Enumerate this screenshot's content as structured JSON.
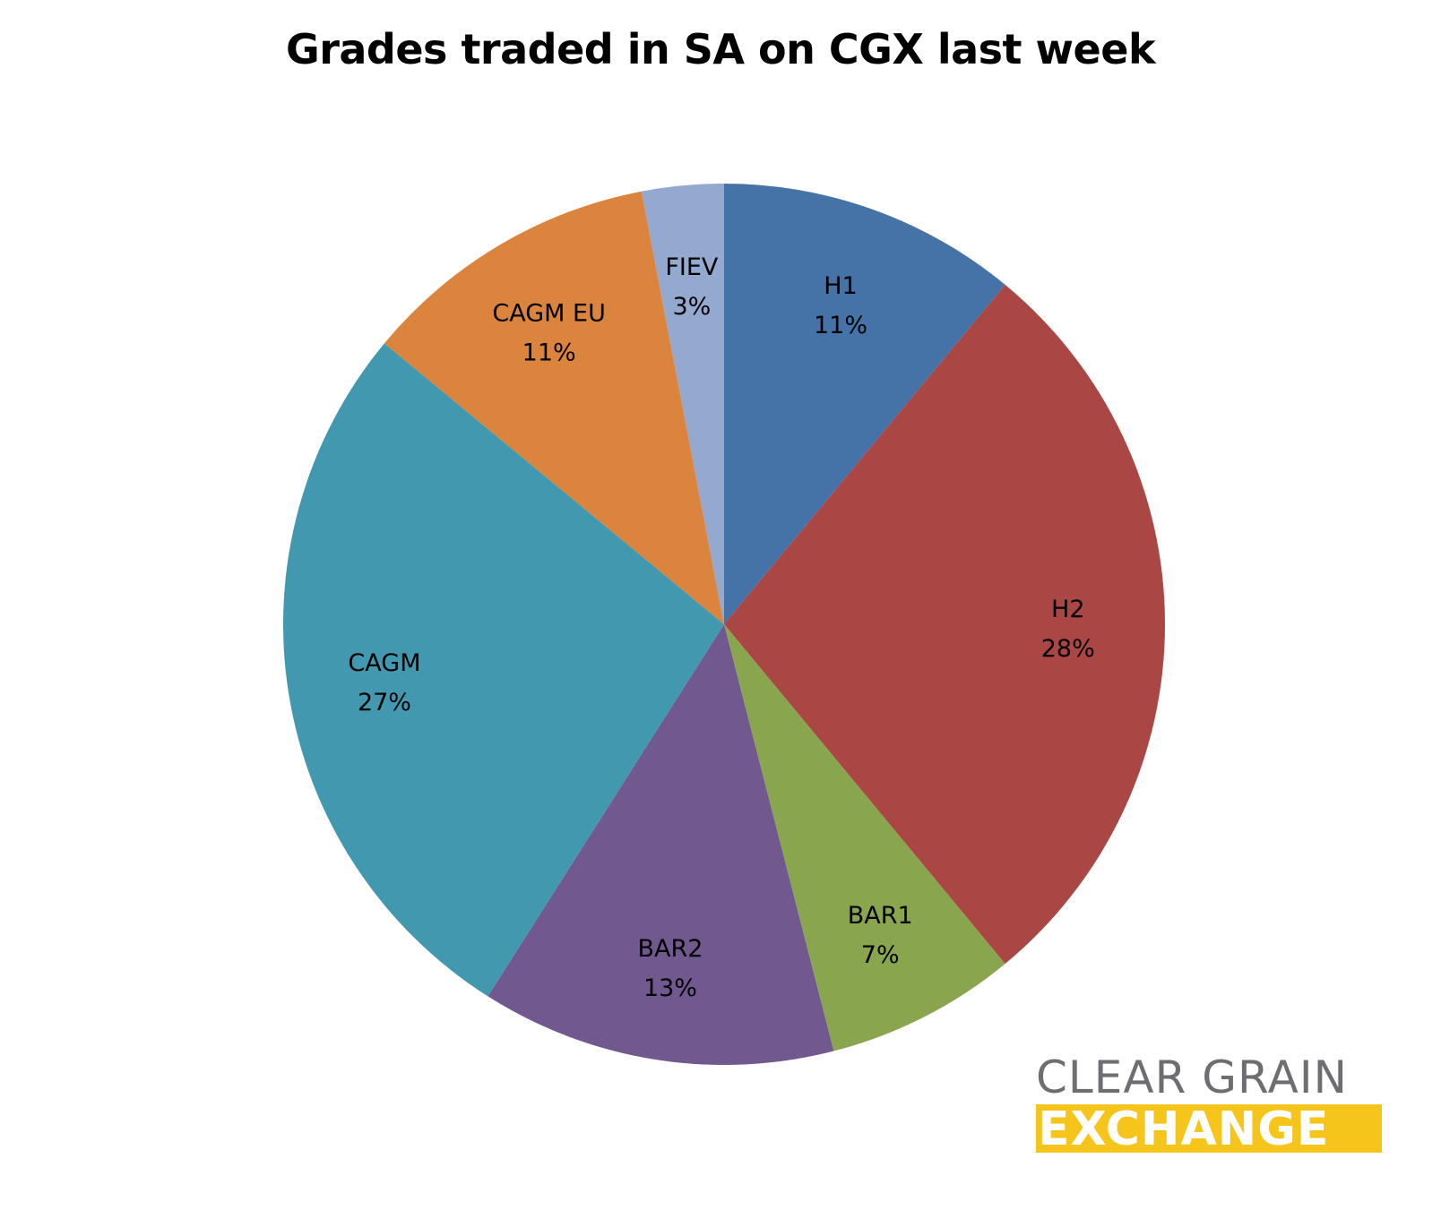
{
  "chart_data": {
    "type": "pie",
    "title": "Grades traded in SA on CGX last week",
    "start_angle": "12 o'clock, clockwise",
    "slices": [
      {
        "label": "H1",
        "value": 11,
        "display": "11%",
        "color": "#4572a7"
      },
      {
        "label": "H2",
        "value": 28,
        "display": "28%",
        "color": "#aa4643"
      },
      {
        "label": "BAR1",
        "value": 7,
        "display": "7%",
        "color": "#89a54e"
      },
      {
        "label": "BAR2",
        "value": 13,
        "display": "13%",
        "color": "#71588f"
      },
      {
        "label": "CAGM",
        "value": 27,
        "display": "27%",
        "color": "#4198af"
      },
      {
        "label": "CAGM EU",
        "value": 11,
        "display": "11%",
        "color": "#db843d"
      },
      {
        "label": "FIEV",
        "value": 3,
        "display": "3%",
        "color": "#93a9cf"
      }
    ]
  },
  "logo": {
    "line1": "CLEAR GRAIN",
    "line2": "EXCHANGE",
    "text_color": "#6d6e71",
    "accent_color": "#f5c51b"
  }
}
